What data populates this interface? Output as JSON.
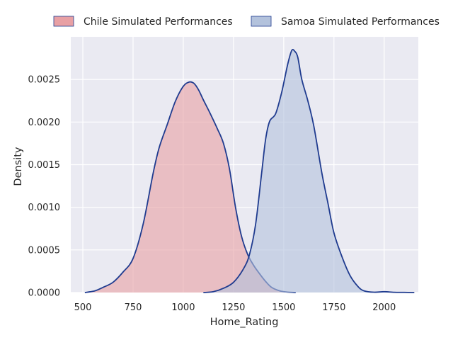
{
  "chart_data": {
    "type": "area",
    "title": "",
    "xlabel": "Home_Rating",
    "ylabel": "Density",
    "xlim": [
      440,
      2170
    ],
    "ylim": [
      0,
      0.003
    ],
    "xticks": [
      "500",
      "750",
      "1000",
      "1250",
      "1500",
      "1750",
      "2000"
    ],
    "yticks": [
      "0.0000",
      "0.0005",
      "0.0010",
      "0.0015",
      "0.0020",
      "0.0025"
    ],
    "grid": true,
    "legend_position": "top, above plot",
    "series": [
      {
        "name": "Chile Simulated Performances",
        "fill": "#e8a0a4",
        "line": "#1f3b8f",
        "x": [
          510,
          560,
          600,
          650,
          700,
          750,
          800,
          850,
          880,
          920,
          960,
          1000,
          1030,
          1050,
          1065,
          1080,
          1100,
          1130,
          1170,
          1200,
          1230,
          1260,
          1290,
          1320,
          1350,
          1380,
          1410,
          1440,
          1480,
          1520,
          1560
        ],
        "y": [
          0.0,
          2e-05,
          6e-05,
          0.00012,
          0.00024,
          0.0004,
          0.0008,
          0.0014,
          0.0017,
          0.00197,
          0.00224,
          0.00242,
          0.00247,
          0.00246,
          0.00242,
          0.00236,
          0.00226,
          0.00212,
          0.00192,
          0.00175,
          0.00145,
          0.001,
          0.00066,
          0.00045,
          0.00032,
          0.00022,
          0.00013,
          6e-05,
          2e-05,
          5e-06,
          0.0
        ]
      },
      {
        "name": "Samoa Simulated Performances",
        "fill": "#b3c2dc",
        "line": "#1f3b8f",
        "x": [
          1100,
          1150,
          1200,
          1250,
          1300,
          1330,
          1360,
          1390,
          1410,
          1430,
          1460,
          1490,
          1520,
          1540,
          1555,
          1570,
          1590,
          1620,
          1650,
          1690,
          1720,
          1750,
          1790,
          1830,
          1870,
          1900,
          1950,
          2000,
          2050,
          2100,
          2150
        ],
        "y": [
          0.0,
          1e-05,
          5e-05,
          0.00012,
          0.00028,
          0.00045,
          0.0008,
          0.0014,
          0.0018,
          0.00201,
          0.0021,
          0.00235,
          0.00268,
          0.00284,
          0.00283,
          0.00276,
          0.0025,
          0.00225,
          0.00195,
          0.0014,
          0.00105,
          0.0007,
          0.00042,
          0.0002,
          7e-05,
          2e-05,
          4e-06,
          1e-05,
          3e-06,
          2e-06,
          0.0
        ]
      }
    ]
  }
}
